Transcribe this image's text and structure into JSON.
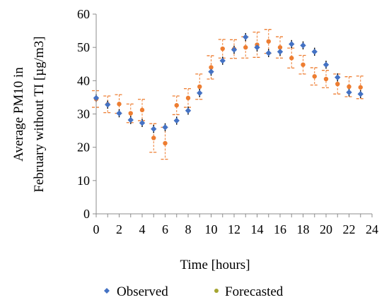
{
  "chart_data": {
    "type": "scatter",
    "title": "",
    "xlabel": "Time [hours]",
    "ylabel_lines": [
      "Average PM10 in",
      "February without TI [µg/m3]"
    ],
    "xlim": [
      0,
      24
    ],
    "ylim": [
      0,
      60
    ],
    "x_ticks": [
      0,
      2,
      4,
      6,
      8,
      10,
      12,
      14,
      16,
      18,
      20,
      22,
      24
    ],
    "y_ticks": [
      0,
      10,
      20,
      30,
      40,
      50,
      60
    ],
    "grid": false,
    "legend_position": "bottom",
    "x": [
      0,
      1,
      2,
      3,
      4,
      5,
      6,
      7,
      8,
      9,
      10,
      11,
      12,
      13,
      14,
      15,
      16,
      17,
      18,
      19,
      20,
      21,
      22,
      23
    ],
    "series": [
      {
        "name": "Observed",
        "color": "#4472C4",
        "values": [
          34.8,
          32.8,
          30.2,
          28.2,
          27.3,
          25.5,
          26.0,
          28.0,
          31.0,
          36.3,
          42.7,
          46.0,
          49.3,
          53.1,
          50.0,
          48.3,
          48.7,
          51.0,
          50.6,
          48.7,
          44.8,
          41.0,
          36.5,
          36.0
        ],
        "errors": [
          1.2,
          1.2,
          1.2,
          1.2,
          1.2,
          1.2,
          1.2,
          1.2,
          1.2,
          1.2,
          1.2,
          1.2,
          1.2,
          1.2,
          1.2,
          1.2,
          1.2,
          1.2,
          1.2,
          1.2,
          1.2,
          1.2,
          1.2,
          1.2
        ]
      },
      {
        "name": "Forecasted",
        "color": "#ED7D31",
        "values": [
          34.5,
          32.9,
          33.0,
          30.2,
          31.2,
          22.8,
          21.2,
          32.6,
          34.8,
          38.2,
          44.0,
          49.6,
          49.5,
          50.0,
          50.8,
          51.8,
          50.0,
          46.8,
          44.8,
          41.3,
          40.5,
          39.0,
          38.2,
          38.0
        ],
        "errors": [
          2.5,
          2.5,
          2.8,
          2.8,
          3.2,
          4.3,
          4.8,
          2.8,
          2.8,
          3.8,
          3.5,
          2.8,
          2.8,
          3.2,
          3.8,
          3.6,
          3.2,
          3.0,
          2.8,
          2.6,
          2.6,
          3.0,
          3.0,
          3.4
        ]
      }
    ]
  }
}
